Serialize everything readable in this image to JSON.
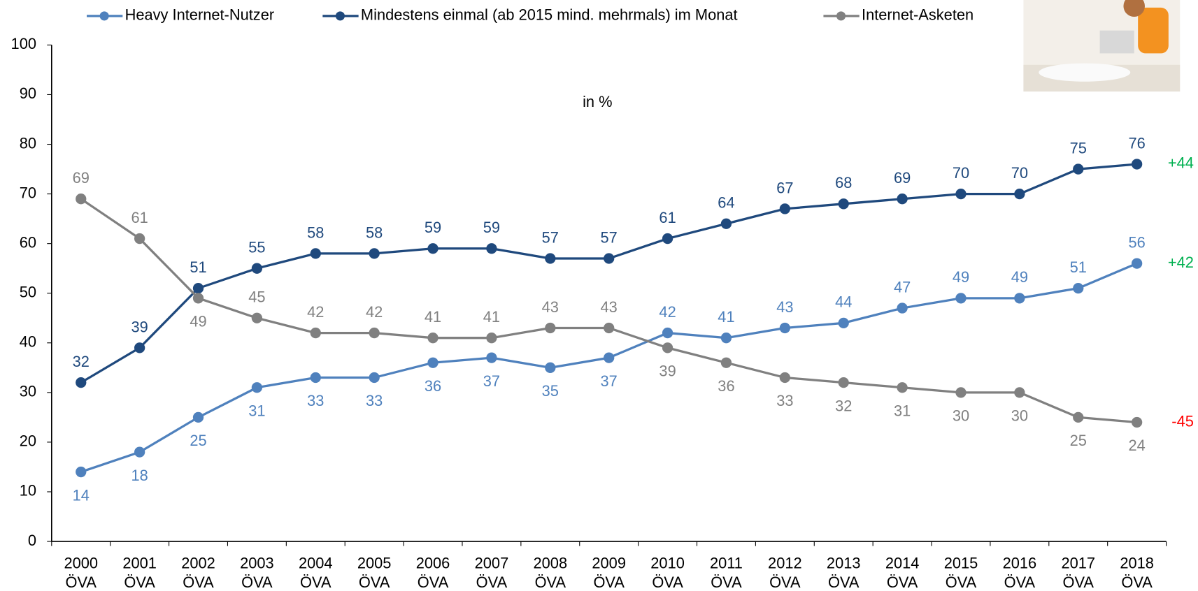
{
  "chart_data": {
    "type": "line",
    "subtitle": "in %",
    "categories": [
      [
        "2000",
        "ÖVA"
      ],
      [
        "2001",
        "ÖVA"
      ],
      [
        "2002",
        "ÖVA"
      ],
      [
        "2003",
        "ÖVA"
      ],
      [
        "2004",
        "ÖVA"
      ],
      [
        "2005",
        "ÖVA"
      ],
      [
        "2006",
        "ÖVA"
      ],
      [
        "2007",
        "ÖVA"
      ],
      [
        "2008",
        "ÖVA"
      ],
      [
        "2009",
        "ÖVA"
      ],
      [
        "2010",
        "ÖVA"
      ],
      [
        "2011",
        "ÖVA"
      ],
      [
        "2012",
        "ÖVA"
      ],
      [
        "2013",
        "ÖVA"
      ],
      [
        "2014",
        "ÖVA"
      ],
      [
        "2015",
        "ÖVA"
      ],
      [
        "2016",
        "ÖVA"
      ],
      [
        "2017",
        "ÖVA"
      ],
      [
        "2018",
        "ÖVA"
      ]
    ],
    "series": [
      {
        "name": "Heavy Internet-Nutzer",
        "color": "#4f81bd",
        "values": [
          14,
          18,
          25,
          31,
          33,
          33,
          36,
          37,
          35,
          37,
          42,
          41,
          43,
          44,
          47,
          49,
          49,
          51,
          56
        ],
        "annotation": "+42",
        "annotation_color": "#00b050"
      },
      {
        "name": "Mindestens einmal (ab 2015 mind. mehrmals) im Monat",
        "color": "#1f497d",
        "values": [
          32,
          39,
          51,
          55,
          58,
          58,
          59,
          59,
          57,
          57,
          61,
          64,
          67,
          68,
          69,
          70,
          70,
          75,
          76
        ],
        "annotation": "+44",
        "annotation_color": "#00b050"
      },
      {
        "name": "Internet-Asketen",
        "color": "#808080",
        "values": [
          69,
          61,
          49,
          45,
          42,
          42,
          41,
          41,
          43,
          43,
          39,
          36,
          33,
          32,
          31,
          30,
          30,
          25,
          24
        ],
        "annotation": "-45",
        "annotation_color": "#ff0000"
      }
    ],
    "ylim": [
      0,
      100
    ],
    "yticks": [
      0,
      10,
      20,
      30,
      40,
      50,
      60,
      70,
      80,
      90,
      100
    ],
    "grid": false,
    "legend": "top"
  }
}
